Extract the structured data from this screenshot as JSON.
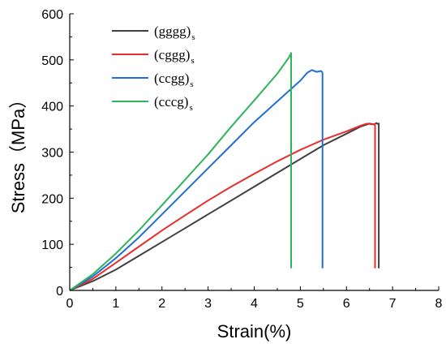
{
  "chart_data": {
    "type": "line",
    "xlabel": "Strain(%)",
    "ylabel": "Stress（MPa）",
    "xlim": [
      0,
      8
    ],
    "ylim": [
      0,
      600
    ],
    "xticks": [
      "0",
      "1",
      "2",
      "3",
      "4",
      "5",
      "6",
      "7",
      "8"
    ],
    "yticks": [
      "0",
      "100",
      "200",
      "300",
      "400",
      "500",
      "600"
    ],
    "grid": false,
    "legend_position": "top-center",
    "series": [
      {
        "name": "(gggg)",
        "name_sub": "s",
        "color": "#404040",
        "x": [
          0,
          0.5,
          1,
          1.5,
          2,
          2.5,
          3,
          3.5,
          4,
          4.5,
          5,
          5.5,
          6,
          6.3,
          6.5,
          6.6,
          6.65,
          6.68,
          6.7,
          6.7
        ],
        "y": [
          0,
          20,
          45,
          75,
          105,
          135,
          165,
          195,
          225,
          255,
          285,
          315,
          340,
          355,
          362,
          360,
          363,
          361,
          362,
          48
        ]
      },
      {
        "name": "(cggg)",
        "name_sub": "s",
        "color": "#e82d2d",
        "x": [
          0,
          0.5,
          1,
          1.5,
          2,
          2.5,
          3,
          3.5,
          4,
          4.5,
          5,
          5.5,
          6,
          6.3,
          6.45,
          6.55,
          6.62,
          6.62
        ],
        "y": [
          0,
          25,
          60,
          95,
          130,
          163,
          195,
          225,
          253,
          280,
          305,
          327,
          345,
          357,
          362,
          360,
          361,
          48
        ]
      },
      {
        "name": "(ccgg)",
        "name_sub": "s",
        "color": "#1f6fd6",
        "x": [
          0,
          0.5,
          1,
          1.5,
          2,
          2.5,
          3,
          3.5,
          4,
          4.5,
          5,
          5.15,
          5.25,
          5.35,
          5.45,
          5.48,
          5.48
        ],
        "y": [
          0,
          30,
          70,
          115,
          165,
          215,
          265,
          315,
          365,
          410,
          455,
          472,
          478,
          474,
          476,
          472,
          48
        ]
      },
      {
        "name": "(cccg)",
        "name_sub": "s",
        "color": "#2fb35b",
        "x": [
          0,
          0.5,
          1,
          1.5,
          2,
          2.5,
          3,
          3.5,
          4,
          4.5,
          4.75,
          4.8,
          4.8
        ],
        "y": [
          0,
          35,
          80,
          130,
          185,
          240,
          295,
          355,
          412,
          470,
          505,
          515,
          48
        ]
      }
    ]
  }
}
